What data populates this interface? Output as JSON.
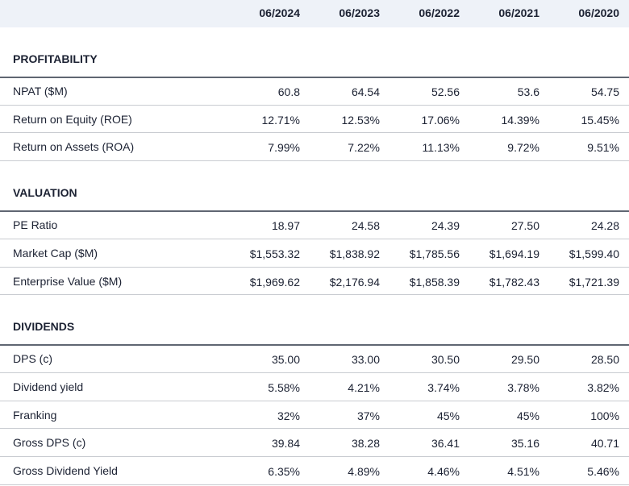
{
  "header": {
    "columns": [
      "06/2024",
      "06/2023",
      "06/2022",
      "06/2021",
      "06/2020"
    ]
  },
  "sections": [
    {
      "title": "PROFITABILITY",
      "rows": [
        {
          "label": "NPAT ($M)",
          "values": [
            "60.8",
            "64.54",
            "52.56",
            "53.6",
            "54.75"
          ]
        },
        {
          "label": "Return on Equity (ROE)",
          "values": [
            "12.71%",
            "12.53%",
            "17.06%",
            "14.39%",
            "15.45%"
          ]
        },
        {
          "label": "Return on Assets (ROA)",
          "values": [
            "7.99%",
            "7.22%",
            "11.13%",
            "9.72%",
            "9.51%"
          ]
        }
      ]
    },
    {
      "title": "VALUATION",
      "rows": [
        {
          "label": "PE Ratio",
          "values": [
            "18.97",
            "24.58",
            "24.39",
            "27.50",
            "24.28"
          ]
        },
        {
          "label": "Market Cap ($M)",
          "values": [
            "$1,553.32",
            "$1,838.92",
            "$1,785.56",
            "$1,694.19",
            "$1,599.40"
          ]
        },
        {
          "label": "Enterprise Value ($M)",
          "values": [
            "$1,969.62",
            "$2,176.94",
            "$1,858.39",
            "$1,782.43",
            "$1,721.39"
          ]
        }
      ]
    },
    {
      "title": "DIVIDENDS",
      "rows": [
        {
          "label": "DPS (c)",
          "values": [
            "35.00",
            "33.00",
            "30.50",
            "29.50",
            "28.50"
          ]
        },
        {
          "label": "Dividend yield",
          "values": [
            "5.58%",
            "4.21%",
            "3.74%",
            "3.78%",
            "3.82%"
          ]
        },
        {
          "label": "Franking",
          "values": [
            "32%",
            "37%",
            "45%",
            "45%",
            "100%"
          ]
        },
        {
          "label": "Gross DPS (c)",
          "values": [
            "39.84",
            "38.28",
            "36.41",
            "35.16",
            "40.71"
          ]
        },
        {
          "label": "Gross Dividend Yield",
          "values": [
            "6.35%",
            "4.89%",
            "4.46%",
            "4.51%",
            "5.46%"
          ]
        }
      ]
    }
  ]
}
